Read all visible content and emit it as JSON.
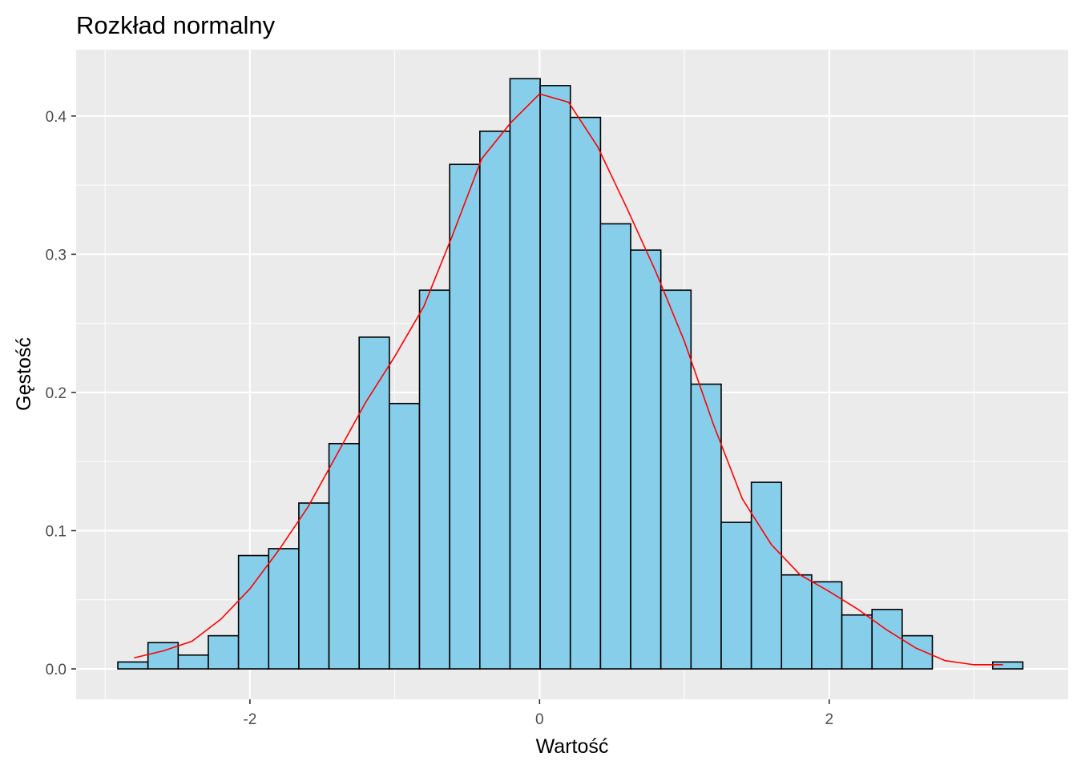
{
  "chart_data": {
    "type": "bar",
    "title": "Rozkład normalny",
    "xlabel": "Wartość",
    "ylabel": "Gęstość",
    "xlim": [
      -3.2,
      3.65
    ],
    "ylim": [
      -0.022,
      0.448
    ],
    "x_ticks": [
      -2,
      0,
      2
    ],
    "x_tick_labels": [
      "-2",
      "0",
      "2"
    ],
    "y_ticks": [
      0.0,
      0.1,
      0.2,
      0.3,
      0.4
    ],
    "y_tick_labels": [
      "0.0",
      "0.1",
      "0.2",
      "0.3",
      "0.4"
    ],
    "grid": true,
    "legend": "none",
    "colors": {
      "panel_background": "#ebebeb",
      "grid": "#ffffff",
      "bar_fill": "#87ceeb",
      "bar_outline": "#000000",
      "density_line": "#ff0000",
      "tick_text": "#4d4d4d",
      "tick_mark": "#333333"
    },
    "histogram": {
      "bin_start": -2.912,
      "bin_width": 0.2083,
      "values": [
        0.005,
        0.019,
        0.01,
        0.024,
        0.082,
        0.087,
        0.12,
        0.163,
        0.24,
        0.192,
        0.274,
        0.365,
        0.389,
        0.427,
        0.422,
        0.399,
        0.322,
        0.303,
        0.274,
        0.206,
        0.106,
        0.135,
        0.068,
        0.063,
        0.039,
        0.043,
        0.024,
        0.0,
        0.0,
        0.005
      ]
    },
    "density": {
      "name": "density",
      "x": [
        -2.8,
        -2.6,
        -2.4,
        -2.2,
        -2.0,
        -1.8,
        -1.6,
        -1.4,
        -1.2,
        -1.0,
        -0.8,
        -0.6,
        -0.4,
        -0.2,
        0.0,
        0.2,
        0.4,
        0.6,
        0.8,
        1.0,
        1.2,
        1.4,
        1.6,
        1.8,
        2.0,
        2.2,
        2.4,
        2.6,
        2.8,
        3.0,
        3.2
      ],
      "y": [
        0.008,
        0.013,
        0.02,
        0.036,
        0.058,
        0.086,
        0.117,
        0.155,
        0.193,
        0.226,
        0.262,
        0.314,
        0.369,
        0.395,
        0.416,
        0.41,
        0.378,
        0.334,
        0.288,
        0.237,
        0.177,
        0.123,
        0.09,
        0.068,
        0.056,
        0.043,
        0.028,
        0.015,
        0.006,
        0.003,
        0.003
      ]
    }
  }
}
